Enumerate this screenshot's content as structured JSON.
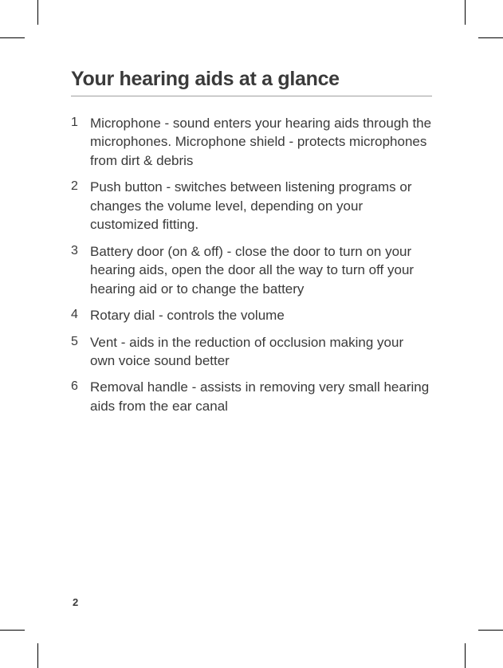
{
  "heading": "Your hearing aids at a glance",
  "items": [
    {
      "num": "1",
      "text": "Microphone - sound enters your hearing aids through the microphones. Microphone shield - protects microphones from dirt & debris"
    },
    {
      "num": "2",
      "text": "Push button - switches between listening programs or changes the volume level, depending on your customized fitting."
    },
    {
      "num": "3",
      "text": "Battery door (on & off) - close the door to turn on your hearing aids, open the door all the way to turn off your hearing aid or to change the battery"
    },
    {
      "num": "4",
      "text": "Rotary dial - controls the volume"
    },
    {
      "num": "5",
      "text": "Vent - aids in the reduction of occlusion making your own voice sound better"
    },
    {
      "num": "6",
      "text": "Removal handle - assists in removing very small hearing aids from the ear canal"
    }
  ],
  "page_number": "2",
  "style": {
    "page_bg": "#ffffff",
    "text_color": "#3a3a3a",
    "heading_fontsize": 25,
    "body_fontsize": 17,
    "num_fontsize": 16,
    "pagenum_fontsize": 13,
    "rule_color": "#9f9f9f",
    "crop_color": "#000000"
  }
}
